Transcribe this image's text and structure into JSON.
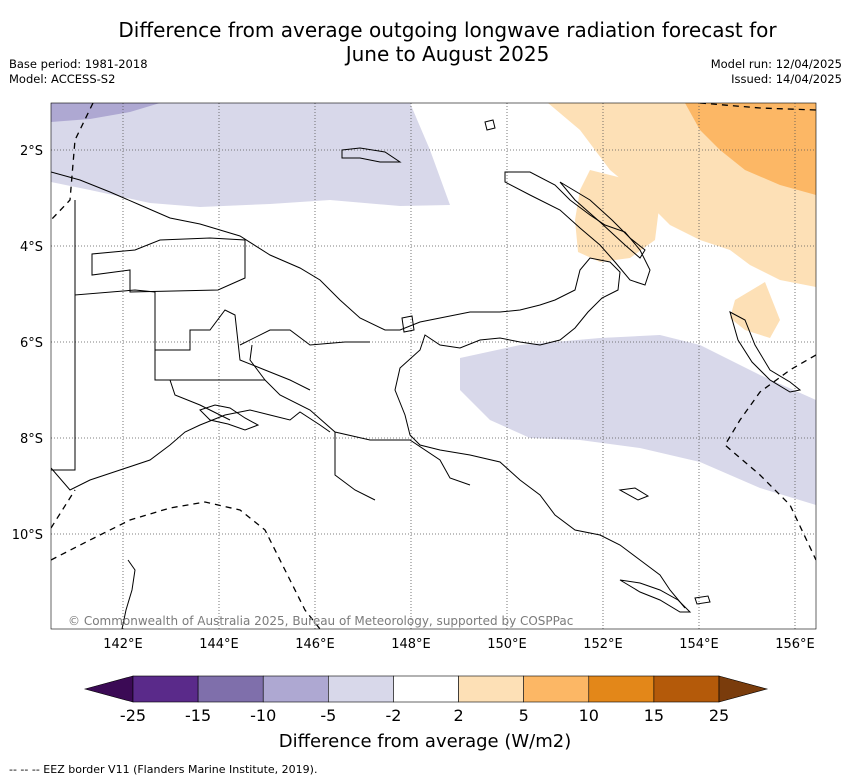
{
  "title": {
    "line1": "Difference from average outgoing longwave radiation forecast for",
    "line2": "June to August 2025"
  },
  "meta": {
    "base_period": "Base period: 1981-2018",
    "model": "Model: ACCESS-S2",
    "model_run": "Model run: 12/04/2025",
    "issued": "Issued: 14/04/2025"
  },
  "latitudes": [
    "2°S",
    "4°S",
    "6°S",
    "8°S",
    "10°S"
  ],
  "longitudes": [
    "142°E",
    "144°E",
    "146°E",
    "148°E",
    "150°E",
    "152°E",
    "154°E",
    "156°E"
  ],
  "copyright": "© Commonwealth of Australia 2025, Bureau of Meteorology, supported by COSPPac",
  "colorbar": {
    "ticks": [
      "-25",
      "-15",
      "-10",
      "-5",
      "-2",
      "2",
      "5",
      "10",
      "15",
      "25"
    ],
    "colors": [
      "#5a2a8a",
      "#7f6fab",
      "#aea8d2",
      "#d8d8ea",
      "#ffffff",
      "#fde0b6",
      "#fcb765",
      "#e38719",
      "#b45a0a"
    ],
    "low_extend": "#3b0a55",
    "high_extend": "#7a3c0c",
    "label": "Difference from average (W/m2)"
  },
  "footnote": "-- -- -- EEZ border V11 (Flanders Marine Institute, 2019)."
}
